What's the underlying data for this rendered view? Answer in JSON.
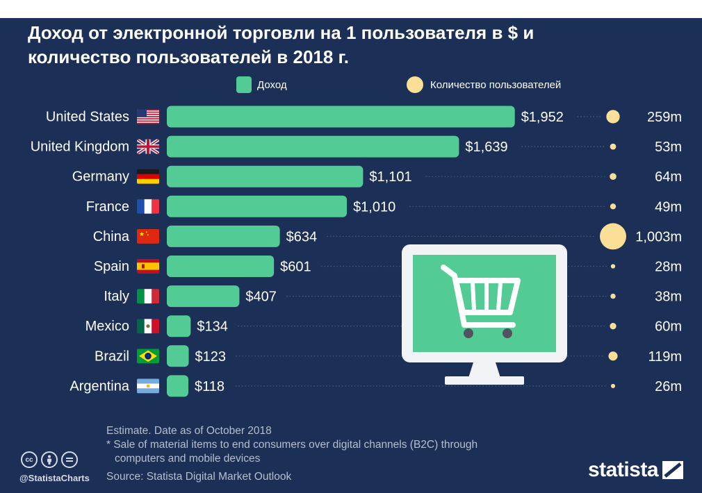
{
  "title_lines": [
    "Доход от электронной торговли на 1 пользователя в $ и",
    "количество пользователей в 2018 г."
  ],
  "legend": {
    "revenue_label": "Доход",
    "users_label": "Количество пользователей"
  },
  "colors": {
    "background": "#1c2f56",
    "bar": "#52cc94",
    "bubble": "#fbdf97",
    "text": "#ffffff",
    "muted": "#b6bfcf"
  },
  "chart_data": {
    "type": "bar",
    "orientation": "horizontal",
    "categories": [
      "United States",
      "United Kingdom",
      "Germany",
      "France",
      "China",
      "Spain",
      "Italy",
      "Mexico",
      "Brazil",
      "Argentina"
    ],
    "flags": [
      "us-flag-icon",
      "uk-flag-icon",
      "germany-flag-icon",
      "france-flag-icon",
      "china-flag-icon",
      "spain-flag-icon",
      "italy-flag-icon",
      "mexico-flag-icon",
      "brazil-flag-icon",
      "argentina-flag-icon"
    ],
    "series": [
      {
        "name": "Доход",
        "values": [
          1952,
          1639,
          1101,
          1010,
          634,
          601,
          407,
          134,
          123,
          118
        ],
        "labels": [
          "$1,952",
          "$1,639",
          "$1,101",
          "$1,010",
          "$634",
          "$601",
          "$407",
          "$134",
          "$123",
          "$118"
        ]
      },
      {
        "name": "Количество пользователей",
        "values": [
          259,
          53,
          64,
          49,
          1003,
          28,
          38,
          60,
          119,
          26
        ],
        "labels": [
          "259m",
          "53m",
          "64m",
          "49m",
          "1,003m",
          "28m",
          "38m",
          "60m",
          "119m",
          "26m"
        ]
      }
    ]
  },
  "footer": {
    "note1": "Estimate. Date as of October 2018",
    "note2": "* Sale of material items to end consumers over digital channels (B2C) through",
    "note3": "computers and mobile devices",
    "source": "Source: Statista Digital Market Outlook",
    "handle": "@StatistaCharts",
    "brand": "statista",
    "cc_icons": [
      "cc-icon",
      "by-icon",
      "nd-icon"
    ]
  }
}
